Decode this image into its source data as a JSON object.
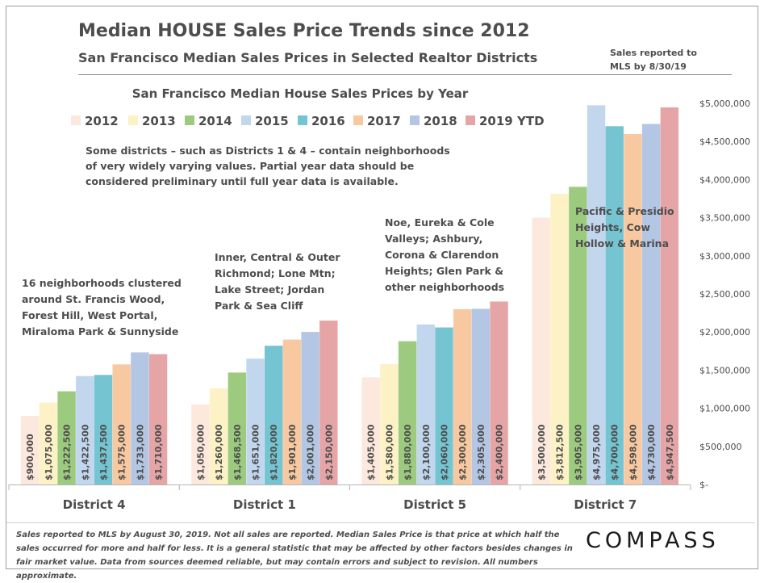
{
  "header": {
    "title": "Median HOUSE Sales Price Trends since 2012",
    "subtitle": "San Francisco Median Sales Prices in Selected Realtor Districts",
    "note": "Sales reported to MLS by 8/30/19"
  },
  "footer": {
    "text": "Sales reported to MLS by August 30, 2019. Not all sales are reported. Median Sales Price is that price at which half the sales occurred for more and half for less. It is a general statistic that may be affected by other factors besides changes in fair market value. Data from sources deemed reliable, but may contain errors and subject to revision. All numbers approximate.",
    "logo": "COMPASS"
  },
  "chart_data": {
    "type": "bar",
    "title": "San Francisco Median House Sales Prices by Year",
    "categories": [
      "District 4",
      "District 1",
      "District 5",
      "District 7"
    ],
    "series": [
      {
        "name": "2012",
        "color": "#fce8dc",
        "values": [
          900000,
          1050000,
          1405000,
          3500000
        ],
        "labels": [
          "$900,000",
          "$1,050,000",
          "$1,405,000",
          "$3,500,000"
        ]
      },
      {
        "name": "2013",
        "color": "#fdf1c6",
        "values": [
          1075000,
          1260000,
          1580000,
          3812500
        ],
        "labels": [
          "$1,075,000",
          "$1,260,000",
          "$1,580,000",
          "$3,812,500"
        ]
      },
      {
        "name": "2014",
        "color": "#9ccb7f",
        "values": [
          1222500,
          1468500,
          1880000,
          3905000
        ],
        "labels": [
          "$1,222,500",
          "$1,468,500",
          "$1,880,000",
          "$3,905,000"
        ]
      },
      {
        "name": "2015",
        "color": "#c2d6ee",
        "values": [
          1422500,
          1651000,
          2100000,
          4975000
        ],
        "labels": [
          "$1,422,500",
          "$1,651,000",
          "$2,100,000",
          "$4,975,000"
        ]
      },
      {
        "name": "2016",
        "color": "#74c4d2",
        "values": [
          1437500,
          1820000,
          2060000,
          4700000
        ],
        "labels": [
          "$1,437,500",
          "$1,820,000",
          "$2,060,000",
          "$4,700,000"
        ]
      },
      {
        "name": "2017",
        "color": "#f8c9a0",
        "values": [
          1575000,
          1901000,
          2300000,
          4598000
        ],
        "labels": [
          "$1,575,000",
          "$1,901,000",
          "$2,300,000",
          "$4,598,000"
        ]
      },
      {
        "name": "2018",
        "color": "#b3c6e3",
        "values": [
          1733000,
          2001000,
          2305000,
          4730000
        ],
        "labels": [
          "$1,733,000",
          "$2,001,000",
          "$2,305,000",
          "$4,730,000"
        ]
      },
      {
        "name": "2019 YTD",
        "color": "#e5a5a7",
        "values": [
          1710000,
          2150000,
          2400000,
          4947500
        ],
        "labels": [
          "$1,710,000",
          "$2,150,000",
          "$2,400,000",
          "$4,947,500"
        ]
      }
    ],
    "ylim": [
      0,
      5000000
    ],
    "yticks": [
      0,
      500000,
      1000000,
      1500000,
      2000000,
      2500000,
      3000000,
      3500000,
      4000000,
      4500000,
      5000000
    ],
    "ytick_labels": [
      "$-",
      "$500,000",
      "$1,000,000",
      "$1,500,000",
      "$2,000,000",
      "$2,500,000",
      "$3,000,000",
      "$3,500,000",
      "$4,000,000",
      "$4,500,000",
      "$5,000,000"
    ],
    "yaxis_position": "right",
    "legend_position": "top",
    "grid": false,
    "annotations": [
      {
        "target": "chart",
        "lines": [
          "Some districts – such as Districts 1 & 4 – contain neighborhoods",
          "of very widely varying values. Partial year data should be",
          "considered preliminary until full year data is available."
        ]
      },
      {
        "target": "District 4",
        "lines": [
          "16 neighborhoods clustered",
          "around St. Francis Wood,",
          "Forest Hill, West Portal,",
          "Miraloma Park & Sunnyside"
        ]
      },
      {
        "target": "District 1",
        "lines": [
          "Inner, Central & Outer",
          "Richmond; Lone Mtn;",
          "Lake Street; Jordan",
          "Park & Sea Cliff"
        ]
      },
      {
        "target": "District 5",
        "lines": [
          "Noe, Eureka & Cole",
          "Valleys; Ashbury,",
          "Corona & Clarendon",
          "Heights; Glen Park &",
          "other neighborhoods"
        ]
      },
      {
        "target": "District 7",
        "lines": [
          "Pacific & Presidio",
          "Heights, Cow",
          "Hollow & Marina"
        ]
      }
    ]
  }
}
